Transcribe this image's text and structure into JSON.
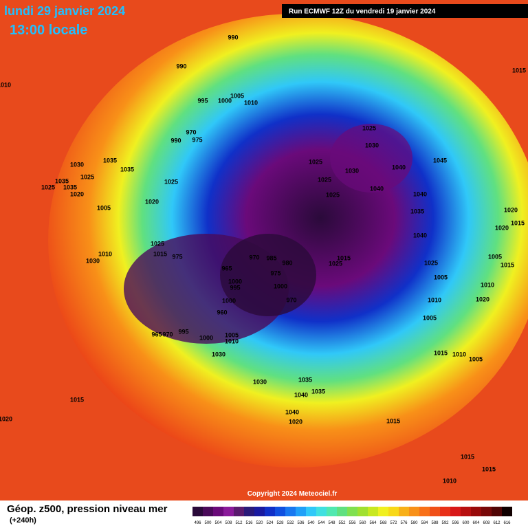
{
  "header": {
    "date": "lundi 29 janvier 2024",
    "time": "13:00 locale",
    "run": "Run ECMWF 12Z du vendredi 19 janvier 2024"
  },
  "copyright": "Copyright 2024 Meteociel.fr",
  "legend": {
    "title": "Géop. z500, pression niveau mer",
    "lead": "(+240h)",
    "values": [
      496,
      500,
      504,
      508,
      512,
      516,
      520,
      524,
      528,
      532,
      536,
      540,
      544,
      548,
      552,
      556,
      560,
      564,
      568,
      572,
      576,
      580,
      584,
      588,
      592,
      596,
      600,
      604,
      608,
      612,
      616
    ],
    "colors": [
      "#2a0a3a",
      "#4a0a5a",
      "#6a0a7a",
      "#8a1a9a",
      "#5a1a6e",
      "#2a1a7a",
      "#1a1aa0",
      "#1030c8",
      "#1050e0",
      "#1878f0",
      "#20a0f8",
      "#30c8f8",
      "#40e0e0",
      "#50e8b0",
      "#60e080",
      "#80e050",
      "#a0e030",
      "#c8e820",
      "#f0f020",
      "#f8d818",
      "#f8b018",
      "#f89018",
      "#f87018",
      "#f05018",
      "#e83018",
      "#d81818",
      "#b81010",
      "#980a0a",
      "#780808",
      "#500505",
      "#100000"
    ]
  },
  "isobar_labels": [
    "990",
    "990",
    "995",
    "1000",
    "1005",
    "1010",
    "970",
    "990",
    "975",
    "1025",
    "1030",
    "1040",
    "1045",
    "1025",
    "1025",
    "1030",
    "1040",
    "1025",
    "1040",
    "1035",
    "1040",
    "1020",
    "1020",
    "1015",
    "1005",
    "1015",
    "1025",
    "1005",
    "1010",
    "1020",
    "1010",
    "1005",
    "1015",
    "1010",
    "1005",
    "1015",
    "1015",
    "1015",
    "1010",
    "1015",
    "1010",
    "1030",
    "1035",
    "1035",
    "1035",
    "1025",
    "1035",
    "1025",
    "1020",
    "1025",
    "1020",
    "1005",
    "1010",
    "1030",
    "1025",
    "1015",
    "975",
    "970",
    "985",
    "980",
    "975",
    "1000",
    "995",
    "1000",
    "1000",
    "960",
    "965",
    "970",
    "995",
    "1000",
    "1005",
    "1010",
    "1030",
    "1030",
    "1035",
    "1040",
    "1035",
    "1040",
    "1020",
    "1015",
    "1020",
    "1025",
    "1015",
    "965",
    "970"
  ]
}
